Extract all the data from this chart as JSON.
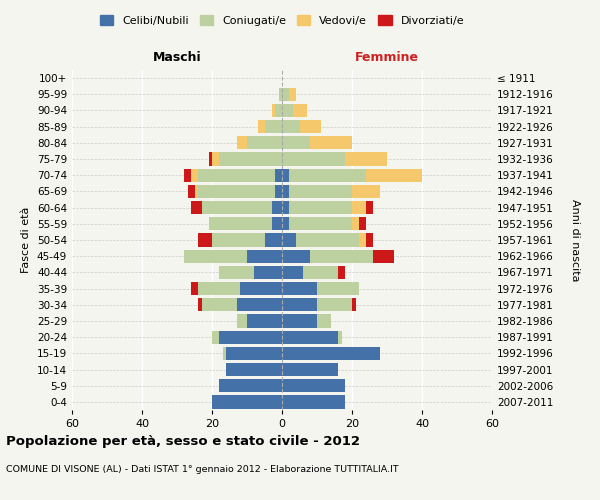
{
  "age_groups": [
    "0-4",
    "5-9",
    "10-14",
    "15-19",
    "20-24",
    "25-29",
    "30-34",
    "35-39",
    "40-44",
    "45-49",
    "50-54",
    "55-59",
    "60-64",
    "65-69",
    "70-74",
    "75-79",
    "80-84",
    "85-89",
    "90-94",
    "95-99",
    "100+"
  ],
  "birth_years": [
    "2007-2011",
    "2002-2006",
    "1997-2001",
    "1992-1996",
    "1987-1991",
    "1982-1986",
    "1977-1981",
    "1972-1976",
    "1967-1971",
    "1962-1966",
    "1957-1961",
    "1952-1956",
    "1947-1951",
    "1942-1946",
    "1937-1941",
    "1932-1936",
    "1927-1931",
    "1922-1926",
    "1917-1921",
    "1912-1916",
    "≤ 1911"
  ],
  "male": {
    "celibi": [
      20,
      18,
      16,
      16,
      18,
      10,
      13,
      12,
      8,
      10,
      5,
      3,
      3,
      2,
      2,
      0,
      0,
      0,
      0,
      0,
      0
    ],
    "coniugati": [
      0,
      0,
      0,
      1,
      2,
      3,
      10,
      12,
      10,
      18,
      15,
      18,
      20,
      22,
      22,
      18,
      10,
      5,
      2,
      1,
      0
    ],
    "vedovi": [
      0,
      0,
      0,
      0,
      0,
      0,
      0,
      0,
      0,
      0,
      0,
      0,
      0,
      1,
      2,
      2,
      3,
      2,
      1,
      0,
      0
    ],
    "divorziati": [
      0,
      0,
      0,
      0,
      0,
      0,
      1,
      2,
      0,
      0,
      4,
      0,
      3,
      2,
      2,
      1,
      0,
      0,
      0,
      0,
      0
    ]
  },
  "female": {
    "nubili": [
      18,
      18,
      16,
      28,
      16,
      10,
      10,
      10,
      6,
      8,
      4,
      2,
      2,
      2,
      2,
      0,
      0,
      0,
      0,
      0,
      0
    ],
    "coniugate": [
      0,
      0,
      0,
      0,
      1,
      4,
      10,
      12,
      10,
      18,
      18,
      18,
      18,
      18,
      22,
      18,
      8,
      5,
      3,
      2,
      0
    ],
    "vedove": [
      0,
      0,
      0,
      0,
      0,
      0,
      0,
      0,
      0,
      0,
      2,
      2,
      4,
      8,
      16,
      12,
      12,
      6,
      4,
      2,
      0
    ],
    "divorziate": [
      0,
      0,
      0,
      0,
      0,
      0,
      1,
      0,
      2,
      6,
      2,
      2,
      2,
      0,
      0,
      0,
      0,
      0,
      0,
      0,
      0
    ]
  },
  "colors": {
    "celibi": "#4472a8",
    "coniugati": "#bdd0a0",
    "vedovi": "#f5c96b",
    "divorziati": "#cc1818"
  },
  "legend_labels": [
    "Celibi/Nubili",
    "Coniugati/e",
    "Vedovi/e",
    "Divorziati/e"
  ],
  "title": "Popolazione per età, sesso e stato civile - 2012",
  "subtitle": "COMUNE DI VISONE (AL) - Dati ISTAT 1° gennaio 2012 - Elaborazione TUTTITALIA.IT",
  "xlabel_left": "Maschi",
  "xlabel_right": "Femmine",
  "ylabel_left": "Fasce di età",
  "ylabel_right": "Anni di nascita",
  "xlim": 60,
  "bg_color": "#f5f5f0"
}
